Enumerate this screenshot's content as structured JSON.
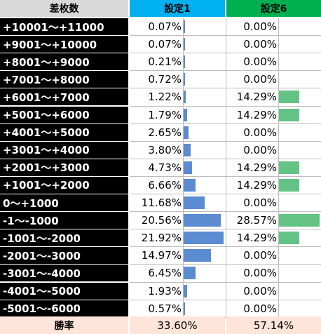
{
  "chart_data": {
    "type": "table",
    "columns": {
      "label": "差枚数",
      "s1": "設定1",
      "s6": "設定6"
    },
    "rows": [
      {
        "label": "+10001～+11000",
        "s1_text": "0.07%",
        "s1": 0.07,
        "s6_text": "0.00%",
        "s6": 0.0
      },
      {
        "label": "+9001～+10000",
        "s1_text": "0.07%",
        "s1": 0.07,
        "s6_text": "0.00%",
        "s6": 0.0
      },
      {
        "label": "+8001～+9000",
        "s1_text": "0.21%",
        "s1": 0.21,
        "s6_text": "0.00%",
        "s6": 0.0
      },
      {
        "label": "+7001～+8000",
        "s1_text": "0.72%",
        "s1": 0.72,
        "s6_text": "0.00%",
        "s6": 0.0
      },
      {
        "label": "+6001～+7000",
        "s1_text": "1.22%",
        "s1": 1.22,
        "s6_text": "14.29%",
        "s6": 14.29
      },
      {
        "label": "+5001～+6000",
        "s1_text": "1.79%",
        "s1": 1.79,
        "s6_text": "14.29%",
        "s6": 14.29
      },
      {
        "label": "+4001～+5000",
        "s1_text": "2.65%",
        "s1": 2.65,
        "s6_text": "0.00%",
        "s6": 0.0
      },
      {
        "label": "+3001～+4000",
        "s1_text": "3.80%",
        "s1": 3.8,
        "s6_text": "0.00%",
        "s6": 0.0
      },
      {
        "label": "+2001～+3000",
        "s1_text": "4.73%",
        "s1": 4.73,
        "s6_text": "14.29%",
        "s6": 14.29
      },
      {
        "label": "+1001～+2000",
        "s1_text": "6.66%",
        "s1": 6.66,
        "s6_text": "14.29%",
        "s6": 14.29
      },
      {
        "label": "0～+1000",
        "s1_text": "11.68%",
        "s1": 11.68,
        "s6_text": "0.00%",
        "s6": 0.0
      },
      {
        "label": "-1～-1000",
        "s1_text": "20.56%",
        "s1": 20.56,
        "s6_text": "28.57%",
        "s6": 28.57
      },
      {
        "label": "-1001～-2000",
        "s1_text": "21.92%",
        "s1": 21.92,
        "s6_text": "14.29%",
        "s6": 14.29
      },
      {
        "label": "-2001～-3000",
        "s1_text": "14.97%",
        "s1": 14.97,
        "s6_text": "0.00%",
        "s6": 0.0
      },
      {
        "label": "-3001～-4000",
        "s1_text": "6.45%",
        "s1": 6.45,
        "s6_text": "0.00%",
        "s6": 0.0
      },
      {
        "label": "-4001～-5000",
        "s1_text": "1.93%",
        "s1": 1.93,
        "s6_text": "0.00%",
        "s6": 0.0
      },
      {
        "label": "-5001～-6000",
        "s1_text": "0.57%",
        "s1": 0.57,
        "s6_text": "0.00%",
        "s6": 0.0
      }
    ],
    "footer": {
      "label": "勝率",
      "s1": "33.60%",
      "s6": "57.14%"
    },
    "bar_max": {
      "s1": 21.92,
      "s6": 28.57
    },
    "colors": {
      "s1_header": "#00b0f0",
      "s6_header": "#00b050",
      "s1_bar": "#5b8bd0",
      "s6_bar": "#63c384",
      "label_bg": "#000000",
      "header_bg": "#d9d9d9",
      "footer_bg": "#ffe5d9"
    }
  }
}
